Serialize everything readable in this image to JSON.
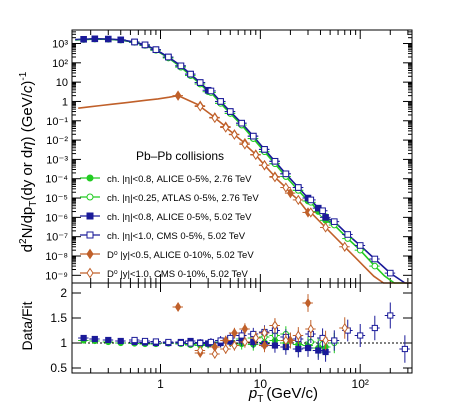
{
  "chart_data": [
    {
      "type": "scatter",
      "panel": "spectra",
      "xlabel_main": "p",
      "xlabel_sub": "T",
      "xlabel_unit": "(GeV/c)",
      "ylabel": "d²N/dp_T(dy or dη)  (GeV/c)⁻¹",
      "ylabel_parts": {
        "a": "d",
        "b": "2",
        "c": "N/dp",
        "d": "T",
        "e": "(dy or d",
        "f": "η",
        "g": ")  (GeV/",
        "h": "c",
        ")": ")",
        "exp": "-1"
      },
      "x_scale": "log",
      "y_scale": "log",
      "xlim": [
        0.13,
        330
      ],
      "ylim": [
        4e-10,
        5000.0
      ],
      "x_tick_labels": [
        "1",
        "10",
        "10²"
      ],
      "y_tick_labels": [
        "10⁻⁹",
        "10⁻⁸",
        "10⁻⁷",
        "10⁻⁶",
        "10⁻⁵",
        "10⁻⁴",
        "10⁻³",
        "10⁻²",
        "10⁻¹",
        "1",
        "10",
        "10²",
        "10³"
      ],
      "legend_title": "Pb–Pb  collisions",
      "legend_position": "left-bottom",
      "series": [
        {
          "name": "ch.  |η|<0.8,   ALICE  0-5%, 2.76 TeV",
          "marker": "filled-circle",
          "color": "#22cc22",
          "x": [
            0.17,
            0.22,
            0.3,
            0.4,
            0.55,
            0.7,
            0.9,
            1.2,
            1.6,
            2.0,
            2.5,
            3.0,
            4.0,
            5.0,
            6.5,
            8.5,
            11,
            14,
            18,
            24,
            30,
            38,
            45
          ],
          "y": [
            1600,
            1700,
            1650,
            1500,
            1150,
            800,
            450,
            180,
            60,
            22,
            8,
            3.2,
            0.8,
            0.24,
            0.06,
            0.012,
            0.0025,
            0.0006,
            0.00013,
            2.5e-05,
            7e-06,
            2e-06,
            7e-07
          ]
        },
        {
          "name": "ch.  |η|<0.25, ATLAS  0-5%, 2.76 TeV",
          "marker": "open-circle",
          "color": "#22cc22",
          "x": [
            0.55,
            0.7,
            0.9,
            1.2,
            1.6,
            2.0,
            2.5,
            3.2,
            4.0,
            5.0,
            6.5,
            8.5,
            11,
            14,
            18,
            24,
            32,
            42,
            55,
            75,
            100,
            140
          ],
          "y": [
            1150,
            800,
            450,
            180,
            60,
            22,
            8,
            2.9,
            0.8,
            0.24,
            0.06,
            0.012,
            0.0025,
            0.0006,
            0.00013,
            2.5e-05,
            6e-06,
            1.5e-06,
            4e-07,
            8e-08,
            2e-08,
            3e-09
          ]
        },
        {
          "name": "ch.  |η|<0.8,   ALICE  0-5%, 5.02 TeV",
          "marker": "filled-square",
          "color": "#1a1a99",
          "x": [
            0.17,
            0.22,
            0.3,
            0.4,
            0.55,
            0.7,
            0.9,
            1.2,
            1.6,
            2.0,
            2.5,
            3.0,
            4.0,
            5.0,
            6.5,
            8.5,
            11,
            14,
            18,
            24,
            30,
            38,
            45
          ],
          "y": [
            1650,
            1750,
            1700,
            1550,
            1200,
            850,
            480,
            200,
            70,
            26,
            9.5,
            3.8,
            1.0,
            0.3,
            0.075,
            0.016,
            0.0033,
            0.0008,
            0.00018,
            3.5e-05,
            1e-05,
            3e-06,
            1e-06
          ]
        },
        {
          "name": "ch.  |η|<1.0,     CMS  0-5%, 5.02 TeV",
          "marker": "open-square",
          "color": "#1a1a99",
          "x": [
            0.55,
            0.7,
            0.9,
            1.2,
            1.6,
            2.0,
            2.5,
            3.2,
            4.0,
            5.0,
            6.5,
            8.5,
            11,
            14,
            18,
            24,
            32,
            42,
            55,
            75,
            100,
            140,
            200,
            280
          ],
          "y": [
            1200,
            850,
            480,
            200,
            70,
            26,
            9.5,
            3.5,
            1.0,
            0.3,
            0.075,
            0.016,
            0.0033,
            0.0008,
            0.00018,
            3.5e-05,
            8e-06,
            2.2e-06,
            6e-07,
            1.3e-07,
            3.5e-08,
            7e-09,
            1.3e-09,
            3e-10
          ]
        },
        {
          "name": "D⁰   |y|<0.5,  ALICE  0-10%, 5.02 TeV",
          "marker": "filled-diamond",
          "color": "#c0602a",
          "x": [
            1.5,
            2.5,
            3.5,
            4.5,
            5.5,
            7,
            9,
            11,
            14,
            20,
            30
          ],
          "y": [
            2.0,
            0.6,
            0.15,
            0.05,
            0.02,
            0.007,
            0.0018,
            0.0005,
            0.00013,
            1.8e-05,
            1.8e-06
          ]
        },
        {
          "name": "D⁰   |y|<1.0,     CMS  0-10%, 5.02 TeV",
          "marker": "open-diamond",
          "color": "#c0602a",
          "x": [
            2.5,
            3.5,
            4.5,
            5.5,
            7,
            9,
            11,
            14,
            18,
            24,
            32,
            45,
            70
          ],
          "y": [
            0.55,
            0.14,
            0.045,
            0.019,
            0.006,
            0.0017,
            0.0005,
            0.00012,
            3.5e-05,
            8e-06,
            1.8e-06,
            3e-07,
            3e-08
          ]
        }
      ],
      "fits": [
        {
          "color": "#22cc22"
        },
        {
          "color": "#1a1a99"
        },
        {
          "color": "#c0602a"
        }
      ]
    },
    {
      "type": "scatter",
      "panel": "ratio",
      "ylabel": "Data/Fit",
      "x_scale": "log",
      "xlim": [
        0.13,
        330
      ],
      "ylim": [
        0.4,
        2.2
      ],
      "y_tick_labels": [
        "0.5",
        "1",
        "1.5",
        "2"
      ],
      "reference_line": 1,
      "series": [
        {
          "name": "ALICE 2.76 TeV",
          "marker": "filled-circle",
          "color": "#22cc22",
          "x": [
            0.17,
            0.22,
            0.3,
            0.4,
            0.55,
            0.7,
            0.9,
            1.2,
            1.6,
            2.0,
            2.5,
            3.0,
            4.0,
            5.0,
            6.5,
            8.5,
            11,
            14,
            18,
            24,
            30,
            38,
            45
          ],
          "y": [
            1.05,
            1.04,
            1.02,
            1.0,
            0.99,
            0.98,
            0.98,
            0.99,
            1.0,
            0.96,
            0.95,
            0.97,
            1.0,
            1.02,
            0.98,
            0.97,
            1.01,
            1.05,
            1.0,
            0.97,
            0.95,
            0.9,
            0.92
          ]
        },
        {
          "name": "ATLAS 2.76 TeV",
          "marker": "open-circle",
          "color": "#22cc22",
          "x": [
            0.55,
            0.7,
            0.9,
            1.2,
            1.6,
            2.0,
            2.5,
            3.2,
            4.0,
            5.0,
            6.5,
            8.5,
            11,
            14,
            18,
            24,
            32,
            42,
            55
          ],
          "y": [
            1.02,
            1.01,
            1.0,
            1.0,
            0.98,
            0.97,
            0.98,
            1.0,
            1.02,
            1.05,
            1.08,
            1.1,
            1.12,
            1.15,
            1.18,
            1.08,
            1.02,
            0.98,
            1.0
          ]
        },
        {
          "name": "ALICE 5.02 TeV",
          "marker": "filled-square",
          "color": "#1a1a99",
          "x": [
            0.17,
            0.22,
            0.3,
            0.4,
            0.55,
            0.7,
            0.9,
            1.2,
            1.6,
            2.0,
            2.5,
            3.0,
            4.0,
            5.0,
            6.5,
            8.5,
            11,
            14,
            18,
            24,
            30,
            38,
            45
          ],
          "y": [
            1.1,
            1.08,
            1.06,
            1.04,
            1.02,
            1.01,
            1.0,
            1.0,
            1.02,
            1.04,
            1.01,
            0.99,
            1.0,
            1.03,
            1.05,
            1.02,
            0.98,
            0.95,
            0.92,
            0.88,
            0.9,
            0.85,
            0.82
          ]
        },
        {
          "name": "CMS 5.02 TeV",
          "marker": "open-square",
          "color": "#1a1a99",
          "x": [
            0.55,
            0.7,
            0.9,
            1.2,
            1.6,
            2.0,
            2.5,
            3.2,
            4.0,
            5.0,
            6.5,
            8.5,
            11,
            14,
            18,
            24,
            32,
            42,
            55,
            75,
            100,
            140,
            200,
            280
          ],
          "y": [
            1.06,
            1.04,
            1.03,
            1.02,
            1.0,
            0.99,
            1.0,
            1.02,
            1.05,
            1.1,
            1.15,
            1.18,
            1.22,
            1.25,
            1.12,
            1.08,
            1.18,
            1.1,
            1.05,
            1.25,
            1.15,
            1.3,
            1.55,
            0.88
          ]
        },
        {
          "name": "D0 ALICE",
          "marker": "filled-diamond",
          "color": "#c0602a",
          "x": [
            1.5,
            2.5,
            3.5,
            4.5,
            5.5,
            7,
            9,
            11,
            14,
            20,
            30
          ],
          "y": [
            1.72,
            0.8,
            0.92,
            1.05,
            1.2,
            1.28,
            1.1,
            0.95,
            1.35,
            1.05,
            1.8
          ]
        },
        {
          "name": "D0 CMS",
          "marker": "open-diamond",
          "color": "#c0602a",
          "x": [
            2.5,
            3.5,
            4.5,
            5.5,
            7,
            9,
            11,
            14,
            18,
            24,
            32,
            45,
            70
          ],
          "y": [
            0.85,
            0.78,
            0.88,
            0.95,
            1.02,
            1.1,
            1.2,
            1.35,
            1.05,
            1.15,
            1.28,
            1.05,
            1.3
          ]
        }
      ]
    }
  ]
}
